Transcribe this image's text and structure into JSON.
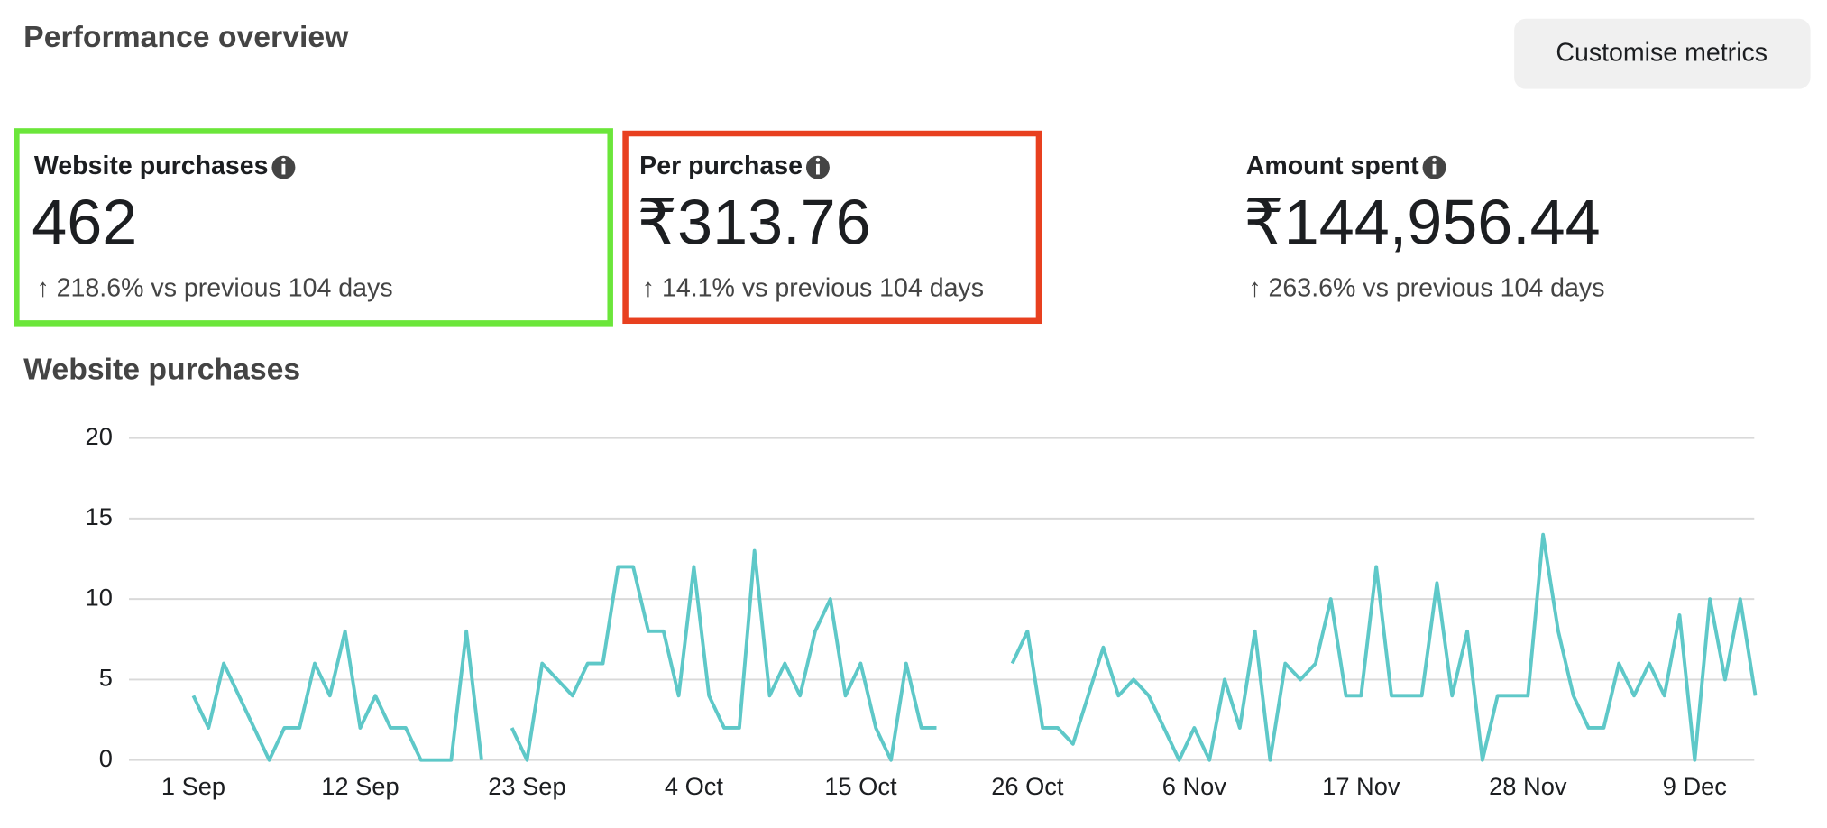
{
  "header": {
    "title": "Performance overview",
    "button": "Customise metrics"
  },
  "cards": [
    {
      "title": "Website purchases",
      "value": "462",
      "change": "↑ 218.6% vs previous 104 days"
    },
    {
      "title": "Per purchase",
      "value": "₹313.76",
      "change": "↑ 14.1% vs previous 104 days"
    },
    {
      "title": "Amount spent",
      "value": "₹144,956.44",
      "change": "↑ 263.6% vs previous 104 days"
    }
  ],
  "chart_data": {
    "type": "line",
    "title": "Website purchases",
    "color": "#5ec8c8",
    "categories": [
      "1 Sep",
      null,
      null,
      null,
      null,
      null,
      null,
      null,
      null,
      null,
      null,
      "12 Sep",
      null,
      null,
      null,
      null,
      null,
      null,
      null,
      null,
      null,
      null,
      "23 Sep",
      null,
      null,
      null,
      null,
      null,
      null,
      null,
      null,
      null,
      null,
      "4 Oct",
      null,
      null,
      null,
      null,
      null,
      null,
      null,
      null,
      null,
      null,
      "15 Oct",
      null,
      null,
      null,
      null,
      null,
      null,
      null,
      null,
      null,
      null,
      "26 Oct",
      null,
      null,
      null,
      null,
      null,
      null,
      null,
      null,
      null,
      null,
      "6 Nov",
      null,
      null,
      null,
      null,
      null,
      null,
      null,
      null,
      null,
      null,
      "17 Nov",
      null,
      null,
      null,
      null,
      null,
      null,
      null,
      null,
      null,
      null,
      "28 Nov",
      null,
      null,
      null,
      null,
      null,
      null,
      null,
      null,
      null,
      null,
      "9 Dec",
      null,
      null,
      null,
      null
    ],
    "values": [
      4,
      2,
      6,
      4,
      2,
      0,
      2,
      2,
      6,
      4,
      8,
      2,
      4,
      2,
      2,
      0,
      0,
      0,
      8,
      0,
      null,
      2,
      0,
      6,
      5,
      4,
      6,
      6,
      12,
      12,
      8,
      8,
      4,
      12,
      4,
      2,
      2,
      13,
      4,
      6,
      4,
      8,
      10,
      4,
      6,
      2,
      0,
      6,
      2,
      2,
      null,
      null,
      null,
      null,
      6,
      8,
      2,
      2,
      1,
      4,
      7,
      4,
      5,
      4,
      2,
      0,
      2,
      0,
      5,
      2,
      8,
      0,
      6,
      5,
      6,
      10,
      4,
      4,
      12,
      4,
      4,
      4,
      11,
      4,
      8,
      0,
      4,
      4,
      4,
      14,
      8,
      4,
      2,
      2,
      6,
      4,
      6,
      4,
      9,
      0,
      10,
      5,
      10,
      4
    ],
    "ylim": [
      0,
      20
    ],
    "yticks": [
      0,
      5,
      10,
      15,
      20
    ],
    "grid": true
  }
}
